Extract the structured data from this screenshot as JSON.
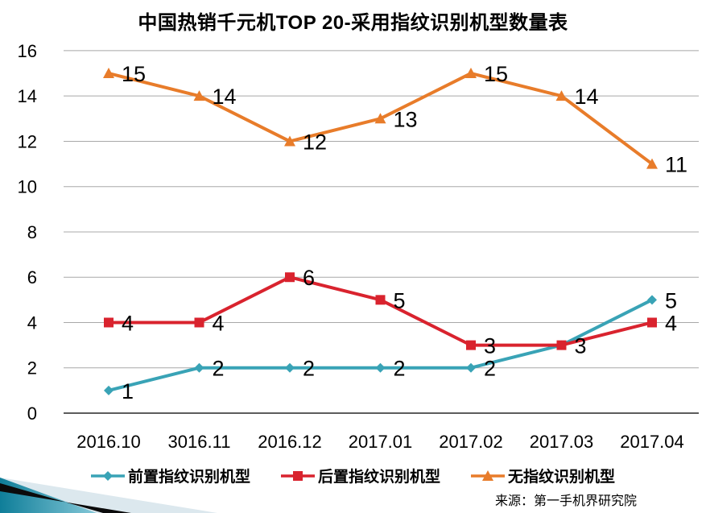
{
  "title": "中国热销千元机TOP 20-采用指纹识别机型数量表",
  "source": "来源：第一手机界研究院",
  "chart_data": {
    "type": "line",
    "title": "中国热销千元机TOP 20-采用指纹识别机型数量表",
    "categories": [
      "2016.10",
      "3016.11",
      "2016.12",
      "2017.01",
      "2017.02",
      "2017.03",
      "2017.04"
    ],
    "series": [
      {
        "name": "前置指纹识别机型",
        "color": "#39a3b6",
        "marker": "diamond",
        "values": [
          1,
          2,
          2,
          2,
          2,
          3,
          5
        ],
        "labels": [
          "1",
          "2",
          "2",
          "2",
          "2",
          "",
          "5"
        ]
      },
      {
        "name": "后置指纹识别机型",
        "color": "#d9232e",
        "marker": "square",
        "values": [
          4,
          4,
          6,
          5,
          3,
          3,
          4
        ],
        "labels": [
          "4",
          "4",
          "6",
          "5",
          "3",
          "3",
          "4"
        ]
      },
      {
        "name": "无指纹识别机型",
        "color": "#e87c2a",
        "marker": "triangle",
        "values": [
          15,
          14,
          12,
          13,
          15,
          14,
          11
        ],
        "labels": [
          "15",
          "14",
          "12",
          "13",
          "15",
          "14",
          "11"
        ]
      }
    ],
    "yticks": [
      0,
      2,
      4,
      6,
      8,
      10,
      12,
      14,
      16
    ],
    "ylim": [
      0,
      16
    ],
    "grid": true,
    "legend_position": "bottom"
  },
  "colors": {
    "gridline": "#a8a8a8",
    "axis_line": "#262626",
    "tick_label": "#000000",
    "data_label": "#000000",
    "corner_teal_dark": "#0f7e99",
    "corner_teal_light": "#85c8d8",
    "corner_pale": "#dce8ee",
    "corner_black": "#0b0b0b"
  }
}
